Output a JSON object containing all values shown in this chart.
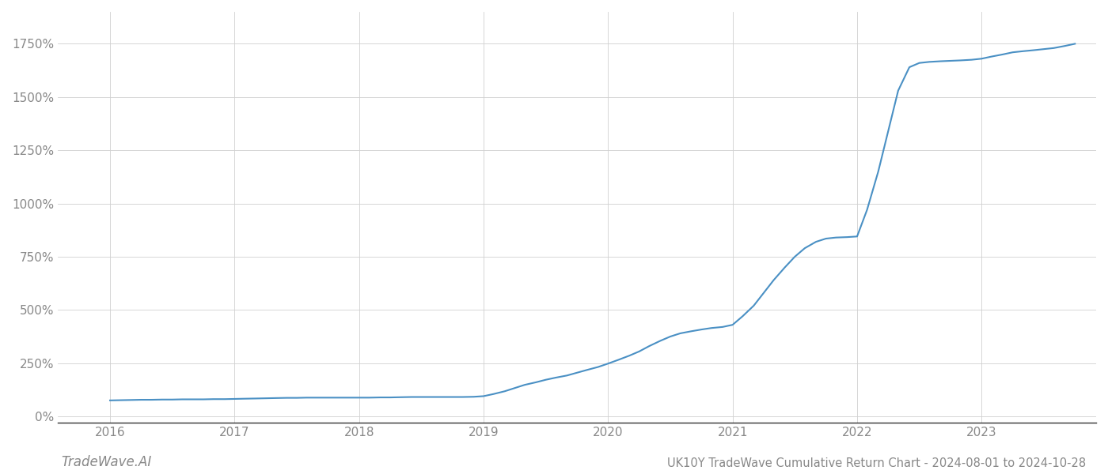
{
  "title": "UK10Y TradeWave Cumulative Return Chart - 2024-08-01 to 2024-10-28",
  "watermark": "TradeWave.AI",
  "line_color": "#4a90c4",
  "background_color": "#ffffff",
  "grid_color": "#d0d0d0",
  "x_years": [
    2016,
    2017,
    2018,
    2019,
    2020,
    2021,
    2022,
    2023
  ],
  "y_ticks": [
    0,
    250,
    500,
    750,
    1000,
    1250,
    1500,
    1750
  ],
  "data_x": [
    2016.0,
    2016.08,
    2016.17,
    2016.25,
    2016.33,
    2016.42,
    2016.5,
    2016.58,
    2016.67,
    2016.75,
    2016.83,
    2016.92,
    2017.0,
    2017.08,
    2017.17,
    2017.25,
    2017.33,
    2017.42,
    2017.5,
    2017.58,
    2017.67,
    2017.75,
    2017.83,
    2017.92,
    2018.0,
    2018.08,
    2018.17,
    2018.25,
    2018.33,
    2018.42,
    2018.5,
    2018.58,
    2018.67,
    2018.75,
    2018.83,
    2018.92,
    2019.0,
    2019.08,
    2019.17,
    2019.25,
    2019.33,
    2019.42,
    2019.5,
    2019.58,
    2019.67,
    2019.75,
    2019.83,
    2019.92,
    2020.0,
    2020.08,
    2020.17,
    2020.25,
    2020.33,
    2020.42,
    2020.5,
    2020.58,
    2020.67,
    2020.75,
    2020.83,
    2020.92,
    2021.0,
    2021.08,
    2021.17,
    2021.25,
    2021.33,
    2021.42,
    2021.5,
    2021.58,
    2021.67,
    2021.75,
    2021.83,
    2021.92,
    2022.0,
    2022.08,
    2022.17,
    2022.25,
    2022.33,
    2022.42,
    2022.5,
    2022.58,
    2022.67,
    2022.75,
    2022.83,
    2022.92,
    2023.0,
    2023.08,
    2023.17,
    2023.25,
    2023.33,
    2023.42,
    2023.5,
    2023.58,
    2023.67,
    2023.75
  ],
  "data_y": [
    75,
    76,
    77,
    78,
    78,
    79,
    79,
    80,
    80,
    80,
    81,
    81,
    82,
    83,
    84,
    85,
    86,
    87,
    87,
    88,
    88,
    88,
    88,
    88,
    88,
    88,
    89,
    89,
    90,
    91,
    91,
    91,
    91,
    91,
    91,
    92,
    95,
    105,
    118,
    133,
    148,
    160,
    172,
    182,
    192,
    205,
    218,
    232,
    248,
    265,
    285,
    305,
    330,
    355,
    375,
    390,
    400,
    408,
    415,
    420,
    430,
    470,
    520,
    580,
    640,
    700,
    750,
    790,
    820,
    835,
    840,
    842,
    845,
    970,
    1150,
    1340,
    1530,
    1640,
    1660,
    1665,
    1668,
    1670,
    1672,
    1675,
    1680,
    1690,
    1700,
    1710,
    1715,
    1720,
    1725,
    1730,
    1740,
    1750
  ],
  "xlim": [
    2015.58,
    2023.92
  ],
  "ylim": [
    -30,
    1900
  ],
  "title_fontsize": 10.5,
  "tick_fontsize": 11,
  "watermark_fontsize": 12,
  "tick_color": "#888888",
  "spine_color": "#333333"
}
